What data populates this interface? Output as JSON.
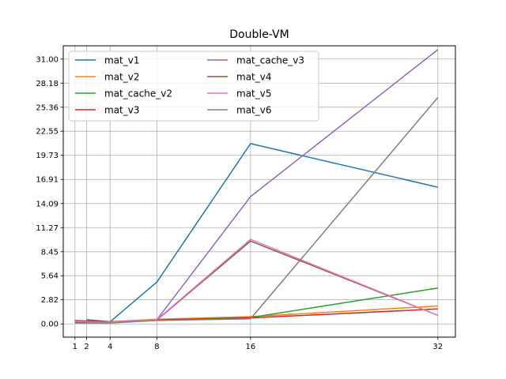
{
  "chart_data": {
    "type": "line",
    "title": "Double-VM",
    "xlabel": "",
    "ylabel": "",
    "x": [
      1,
      2,
      4,
      8,
      16,
      32
    ],
    "x_ticks": [
      "1",
      "2",
      "4",
      "8",
      "16",
      "32"
    ],
    "y_ticks": [
      "0.00",
      "2.82",
      "5.64",
      "8.45",
      "11.27",
      "14.09",
      "16.91",
      "19.73",
      "22.55",
      "25.36",
      "28.18",
      "31.00"
    ],
    "xlim": [
      0,
      33.5
    ],
    "ylim": [
      -1.55,
      32.55
    ],
    "grid": true,
    "legend_position": "top-left",
    "series": [
      {
        "name": "mat_v1",
        "color": "#1f77b4",
        "x": [
          2,
          4,
          8,
          16,
          32
        ],
        "values": [
          0.5,
          0.25,
          4.9,
          21.1,
          16.0
        ]
      },
      {
        "name": "mat_v2",
        "color": "#ff7f0e",
        "x": [
          1,
          2,
          4,
          8,
          16,
          32
        ],
        "values": [
          0.35,
          0.3,
          0.25,
          0.55,
          0.85,
          2.1
        ]
      },
      {
        "name": "mat_cache_v2",
        "color": "#2ca02c",
        "x": [
          1,
          2,
          4,
          8,
          16,
          32
        ],
        "values": [
          0.2,
          0.2,
          0.15,
          0.45,
          0.75,
          4.2
        ]
      },
      {
        "name": "mat_v3",
        "color": "#d62728",
        "x": [
          1,
          2,
          4,
          8,
          16,
          32
        ],
        "values": [
          0.4,
          0.35,
          0.25,
          0.45,
          0.7,
          1.75
        ]
      },
      {
        "name": "mat_cache_v3",
        "color": "#9467bd",
        "x": [
          1,
          2,
          4,
          8,
          16,
          32
        ],
        "values": [
          0.2,
          0.15,
          0.15,
          0.5,
          14.9,
          32.1
        ]
      },
      {
        "name": "mat_v4",
        "color": "#8c564b",
        "x": [
          1,
          2,
          4,
          8,
          16,
          32
        ],
        "values": [
          0.25,
          0.2,
          0.15,
          0.45,
          9.7,
          1.0
        ]
      },
      {
        "name": "mat_v5",
        "color": "#e377c2",
        "x": [
          1,
          2,
          4,
          8,
          16,
          32
        ],
        "values": [
          0.3,
          0.25,
          0.2,
          0.5,
          9.9,
          1.0
        ]
      },
      {
        "name": "mat_v6",
        "color": "#7f7f7f",
        "x": [
          1,
          2,
          4,
          8,
          16,
          32
        ],
        "values": [
          0.1,
          0.1,
          0.1,
          0.4,
          0.6,
          26.5
        ]
      }
    ]
  }
}
